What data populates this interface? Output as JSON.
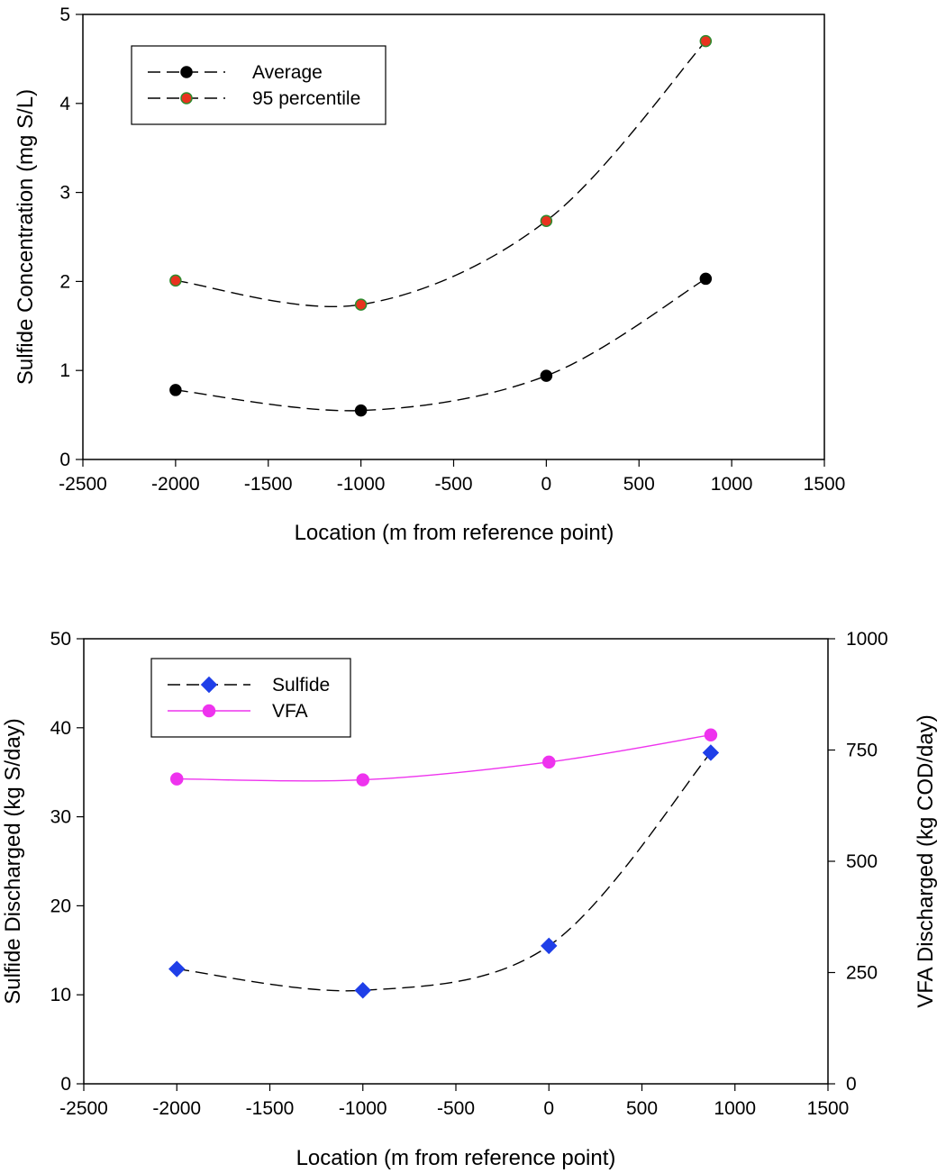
{
  "chart_data": [
    {
      "type": "line",
      "title": "",
      "xlabel": "Location (m from reference point)",
      "ylabel": "Sulfide Concentration (mg S/L)",
      "xlim": [
        -2500,
        1500
      ],
      "ylim": [
        0,
        5
      ],
      "x_ticks": [
        -2500,
        -2000,
        -1500,
        -1000,
        -500,
        0,
        500,
        1000,
        1500
      ],
      "y_ticks": [
        0,
        1,
        2,
        3,
        4,
        5
      ],
      "grid": false,
      "legend_position": "top-left",
      "series": [
        {
          "name": "Average",
          "x": [
            -2000,
            -1000,
            0,
            860
          ],
          "values": [
            0.78,
            0.55,
            0.94,
            2.03
          ],
          "line_style": "dashed",
          "line_color": "#000000",
          "marker": "circle",
          "marker_fill": "#000000",
          "marker_edge": "#000000"
        },
        {
          "name": "95 percentile",
          "x": [
            -2000,
            -1000,
            0,
            860
          ],
          "values": [
            2.01,
            1.74,
            2.68,
            4.7
          ],
          "line_style": "dashed",
          "line_color": "#000000",
          "marker": "circle",
          "marker_fill": "#e8321e",
          "marker_edge": "#2e8b2e"
        }
      ]
    },
    {
      "type": "line",
      "title": "",
      "xlabel": "Location (m from reference point)",
      "ylabel": "Sulfide Discharged (kg S/day)",
      "y2label": "VFA Discharged (kg COD/day)",
      "xlim": [
        -2500,
        1500
      ],
      "ylim": [
        0,
        50
      ],
      "y2lim": [
        0,
        1000
      ],
      "x_ticks": [
        -2500,
        -2000,
        -1500,
        -1000,
        -500,
        0,
        500,
        1000,
        1500
      ],
      "y_ticks": [
        0,
        10,
        20,
        30,
        40,
        50
      ],
      "y2_ticks": [
        0,
        250,
        500,
        750,
        1000
      ],
      "grid": false,
      "legend_position": "top-left",
      "series": [
        {
          "name": "Sulfide",
          "axis": "left",
          "x": [
            -2000,
            -1000,
            0,
            870
          ],
          "values": [
            12.9,
            10.5,
            15.5,
            37.2
          ],
          "line_style": "dashed",
          "line_color": "#000000",
          "marker": "diamond",
          "marker_fill": "#1f3fe8",
          "marker_edge": "#1f3fe8"
        },
        {
          "name": "VFA",
          "axis": "right",
          "x": [
            -2000,
            -1000,
            0,
            870
          ],
          "values": [
            685,
            683,
            723,
            784
          ],
          "line_style": "solid",
          "line_color": "#ee33ee",
          "marker": "circle",
          "marker_fill": "#ee33ee",
          "marker_edge": "#ee33ee"
        }
      ]
    }
  ]
}
